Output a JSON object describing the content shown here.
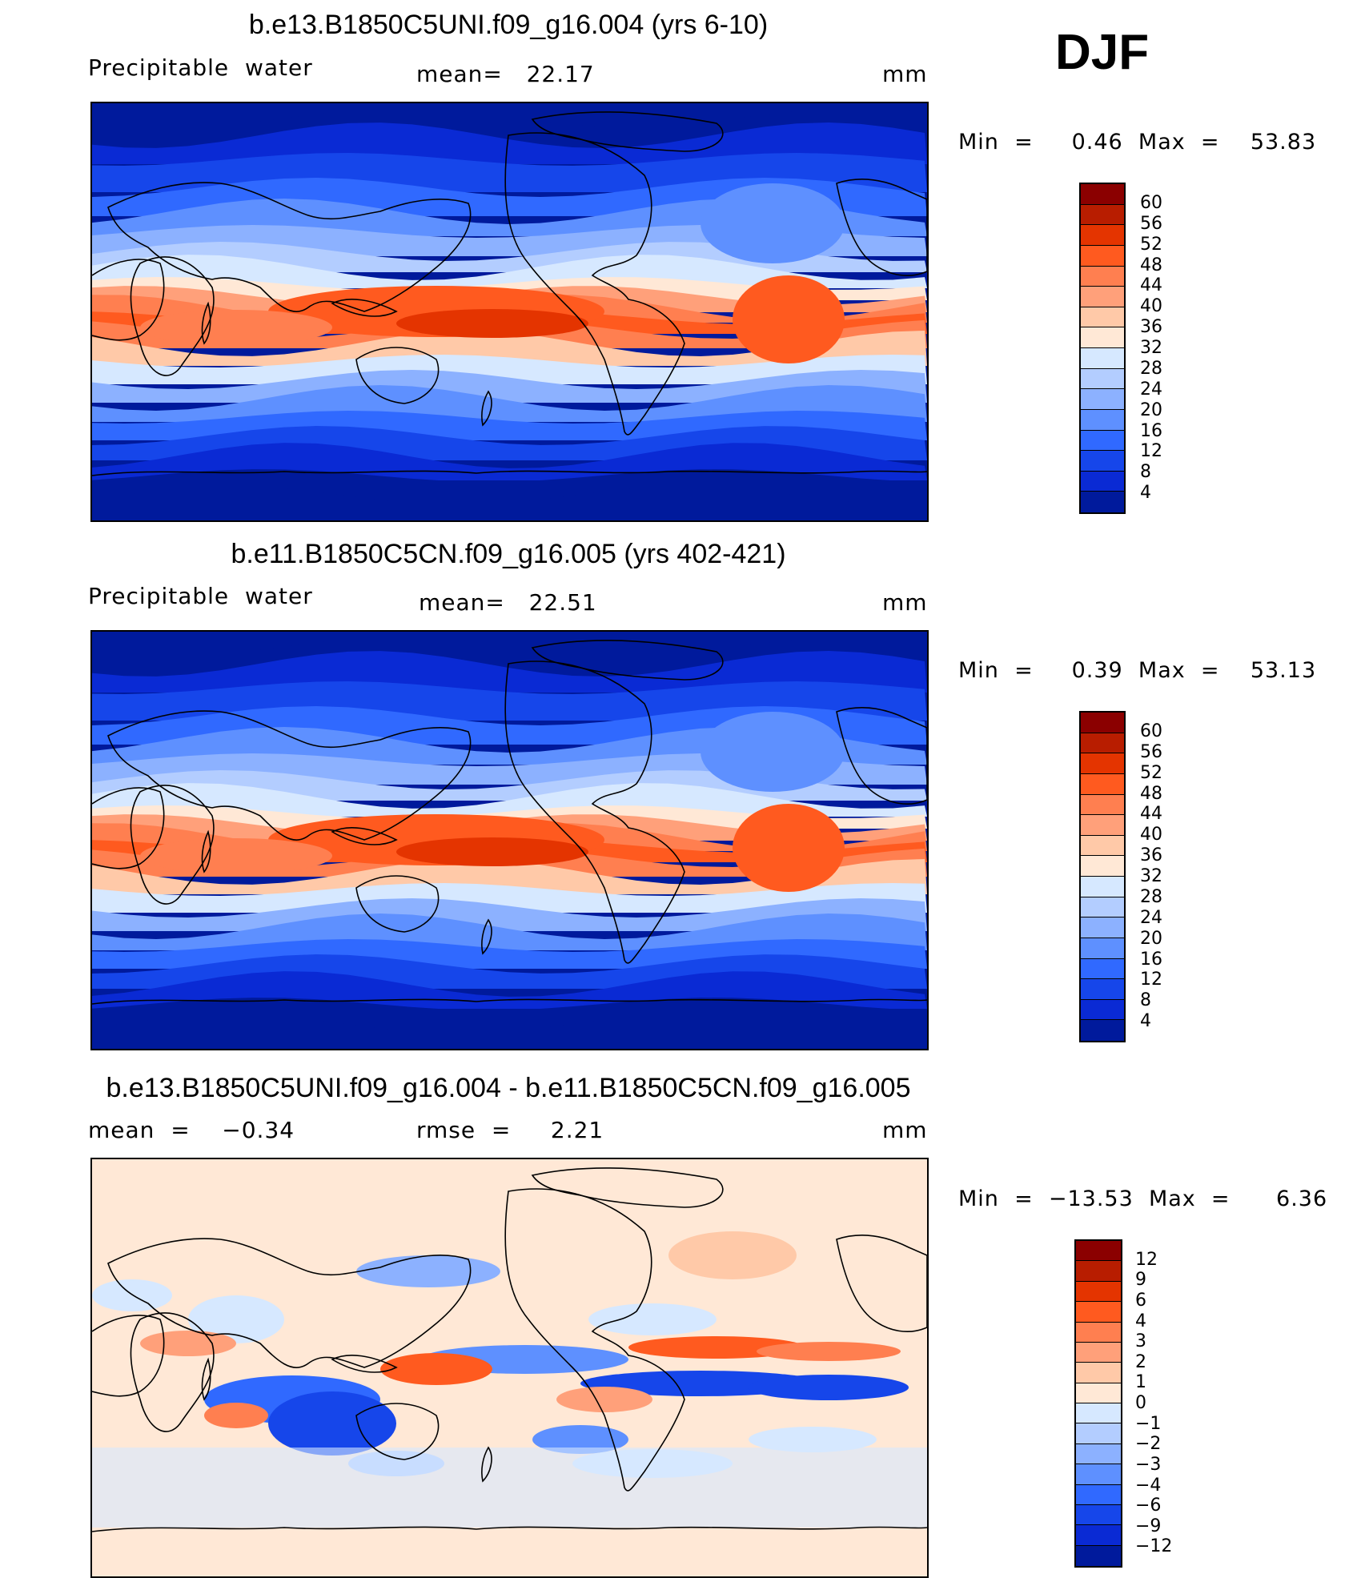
{
  "season": "DJF",
  "panels": [
    {
      "title": "b.e13.B1850C5UNI.f09_g16.004 (yrs 6-10)",
      "left_label": "Precipitable  water",
      "center_label": "mean=   22.17",
      "units": "mm",
      "stats": "Min  =     0.46  Max  =    53.83",
      "kind": "field",
      "levels": [
        "60",
        "56",
        "52",
        "48",
        "44",
        "40",
        "36",
        "32",
        "28",
        "24",
        "20",
        "16",
        "12",
        "8",
        "4"
      ],
      "colors": [
        "#8b0000",
        "#b81d00",
        "#e43400",
        "#ff5a1f",
        "#ff7f50",
        "#ffa07a",
        "#ffc9a8",
        "#ffe8d6",
        "#d6e8ff",
        "#b3cdff",
        "#8cb1ff",
        "#5e90ff",
        "#3069ff",
        "#1646ea",
        "#0a2ad4",
        "#001a9c"
      ]
    },
    {
      "title": "b.e11.B1850C5CN.f09_g16.005 (yrs 402-421)",
      "left_label": "Precipitable  water",
      "center_label": "mean=   22.51",
      "units": "mm",
      "stats": "Min  =     0.39  Max  =    53.13",
      "kind": "field",
      "levels": [
        "60",
        "56",
        "52",
        "48",
        "44",
        "40",
        "36",
        "32",
        "28",
        "24",
        "20",
        "16",
        "12",
        "8",
        "4"
      ],
      "colors": [
        "#8b0000",
        "#b81d00",
        "#e43400",
        "#ff5a1f",
        "#ff7f50",
        "#ffa07a",
        "#ffc9a8",
        "#ffe8d6",
        "#d6e8ff",
        "#b3cdff",
        "#8cb1ff",
        "#5e90ff",
        "#3069ff",
        "#1646ea",
        "#0a2ad4",
        "#001a9c"
      ]
    },
    {
      "title": "b.e13.B1850C5UNI.f09_g16.004 - b.e11.B1850C5CN.f09_g16.005",
      "left_label": "mean  =    −0.34",
      "center_label": "rmse  =     2.21",
      "units": "mm",
      "stats": "Min  =  −13.53  Max  =      6.36",
      "kind": "diff",
      "levels": [
        "12",
        "9",
        "6",
        "4",
        "3",
        "2",
        "1",
        "0",
        "−1",
        "−2",
        "−3",
        "−4",
        "−6",
        "−9",
        "−12"
      ],
      "colors": [
        "#8b0000",
        "#b81d00",
        "#e43400",
        "#ff5a1f",
        "#ff7f50",
        "#ffa07a",
        "#ffc9a8",
        "#ffe8d6",
        "#d6e8ff",
        "#b3cdff",
        "#8cb1ff",
        "#5e90ff",
        "#3069ff",
        "#1646ea",
        "#0a2ad4",
        "#001a9c"
      ]
    }
  ]
}
